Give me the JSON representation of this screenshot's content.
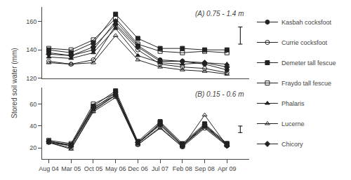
{
  "chart_data": [
    {
      "type": "line",
      "title": "(A) 0.75 - 1.4 m",
      "ylabel": "Stored soil water (mm)",
      "categories": [
        "Aug 04",
        "Mar 05",
        "Oct 05",
        "May 06",
        "Dec 06",
        "Jul 07",
        "Feb 08",
        "Sep 08",
        "Apr 09"
      ],
      "color": "#222222",
      "series": [
        {
          "name": "Kasbah cocksfoot",
          "marker": "circle",
          "values": [
            138,
            136,
            140,
            160,
            143,
            133,
            132,
            130,
            126
          ]
        },
        {
          "name": "Currie cocksfoot",
          "marker": "circle-open",
          "values": [
            132,
            130,
            133,
            157,
            140,
            130,
            128,
            127,
            124
          ]
        },
        {
          "name": "Demeter tall fescue",
          "marker": "square",
          "values": [
            140,
            138,
            145,
            165,
            148,
            141,
            141,
            140,
            140
          ]
        },
        {
          "name": "Fraydo tall fescue",
          "marker": "square-open",
          "values": [
            141,
            140,
            147,
            162,
            144,
            139,
            138,
            139,
            138
          ]
        },
        {
          "name": "Phalaris",
          "marker": "triangle-up",
          "values": [
            135,
            134,
            138,
            155,
            136,
            131,
            130,
            131,
            130
          ]
        },
        {
          "name": "Lucerne",
          "marker": "triangle-up-open",
          "values": [
            131,
            130,
            131,
            150,
            133,
            128,
            126,
            125,
            123
          ]
        },
        {
          "name": "Chicory",
          "marker": "diamond",
          "values": [
            137,
            136,
            142,
            158,
            142,
            132,
            132,
            131,
            128
          ]
        }
      ],
      "error_bar": {
        "center": 150,
        "half": 6
      },
      "ylim": [
        120,
        170
      ],
      "yticks": [
        120,
        140,
        160
      ],
      "grid": false,
      "legend": "right",
      "tick_labels": "y"
    },
    {
      "type": "line",
      "title": "(B) 0.15 - 0.6 m",
      "categories": [
        "Aug 04",
        "Mar 05",
        "Oct 05",
        "May 06",
        "Dec 06",
        "Jul 07",
        "Feb 08",
        "Sep 08",
        "Apr 09"
      ],
      "color": "#222222",
      "series": [
        {
          "name": "Kasbah cocksfoot",
          "marker": "circle",
          "values": [
            26,
            22,
            56,
            70,
            25,
            42,
            22,
            40,
            23
          ]
        },
        {
          "name": "Currie cocksfoot",
          "marker": "circle-open",
          "values": [
            25,
            20,
            54,
            68,
            23,
            39,
            21,
            38,
            22
          ]
        },
        {
          "name": "Demeter tall fescue",
          "marker": "square",
          "values": [
            26,
            23,
            58,
            72,
            26,
            44,
            24,
            42,
            24
          ]
        },
        {
          "name": "Fraydo tall fescue",
          "marker": "square-open",
          "values": [
            27,
            24,
            60,
            70,
            24,
            43,
            23,
            41,
            24
          ]
        },
        {
          "name": "Phalaris",
          "marker": "triangle-up",
          "values": [
            25,
            22,
            55,
            68,
            24,
            41,
            22,
            39,
            23
          ]
        },
        {
          "name": "Lucerne",
          "marker": "triangle-up-open",
          "values": [
            25,
            19,
            53,
            66,
            23,
            38,
            21,
            50,
            22
          ]
        },
        {
          "name": "Chicory",
          "marker": "diamond",
          "values": [
            26,
            22,
            57,
            68,
            25,
            41,
            22,
            41,
            22
          ]
        }
      ],
      "error_bar": {
        "center": 37,
        "half": 3
      },
      "ylim": [
        10,
        75
      ],
      "yticks": [
        20,
        40,
        60
      ],
      "grid": false
    }
  ]
}
